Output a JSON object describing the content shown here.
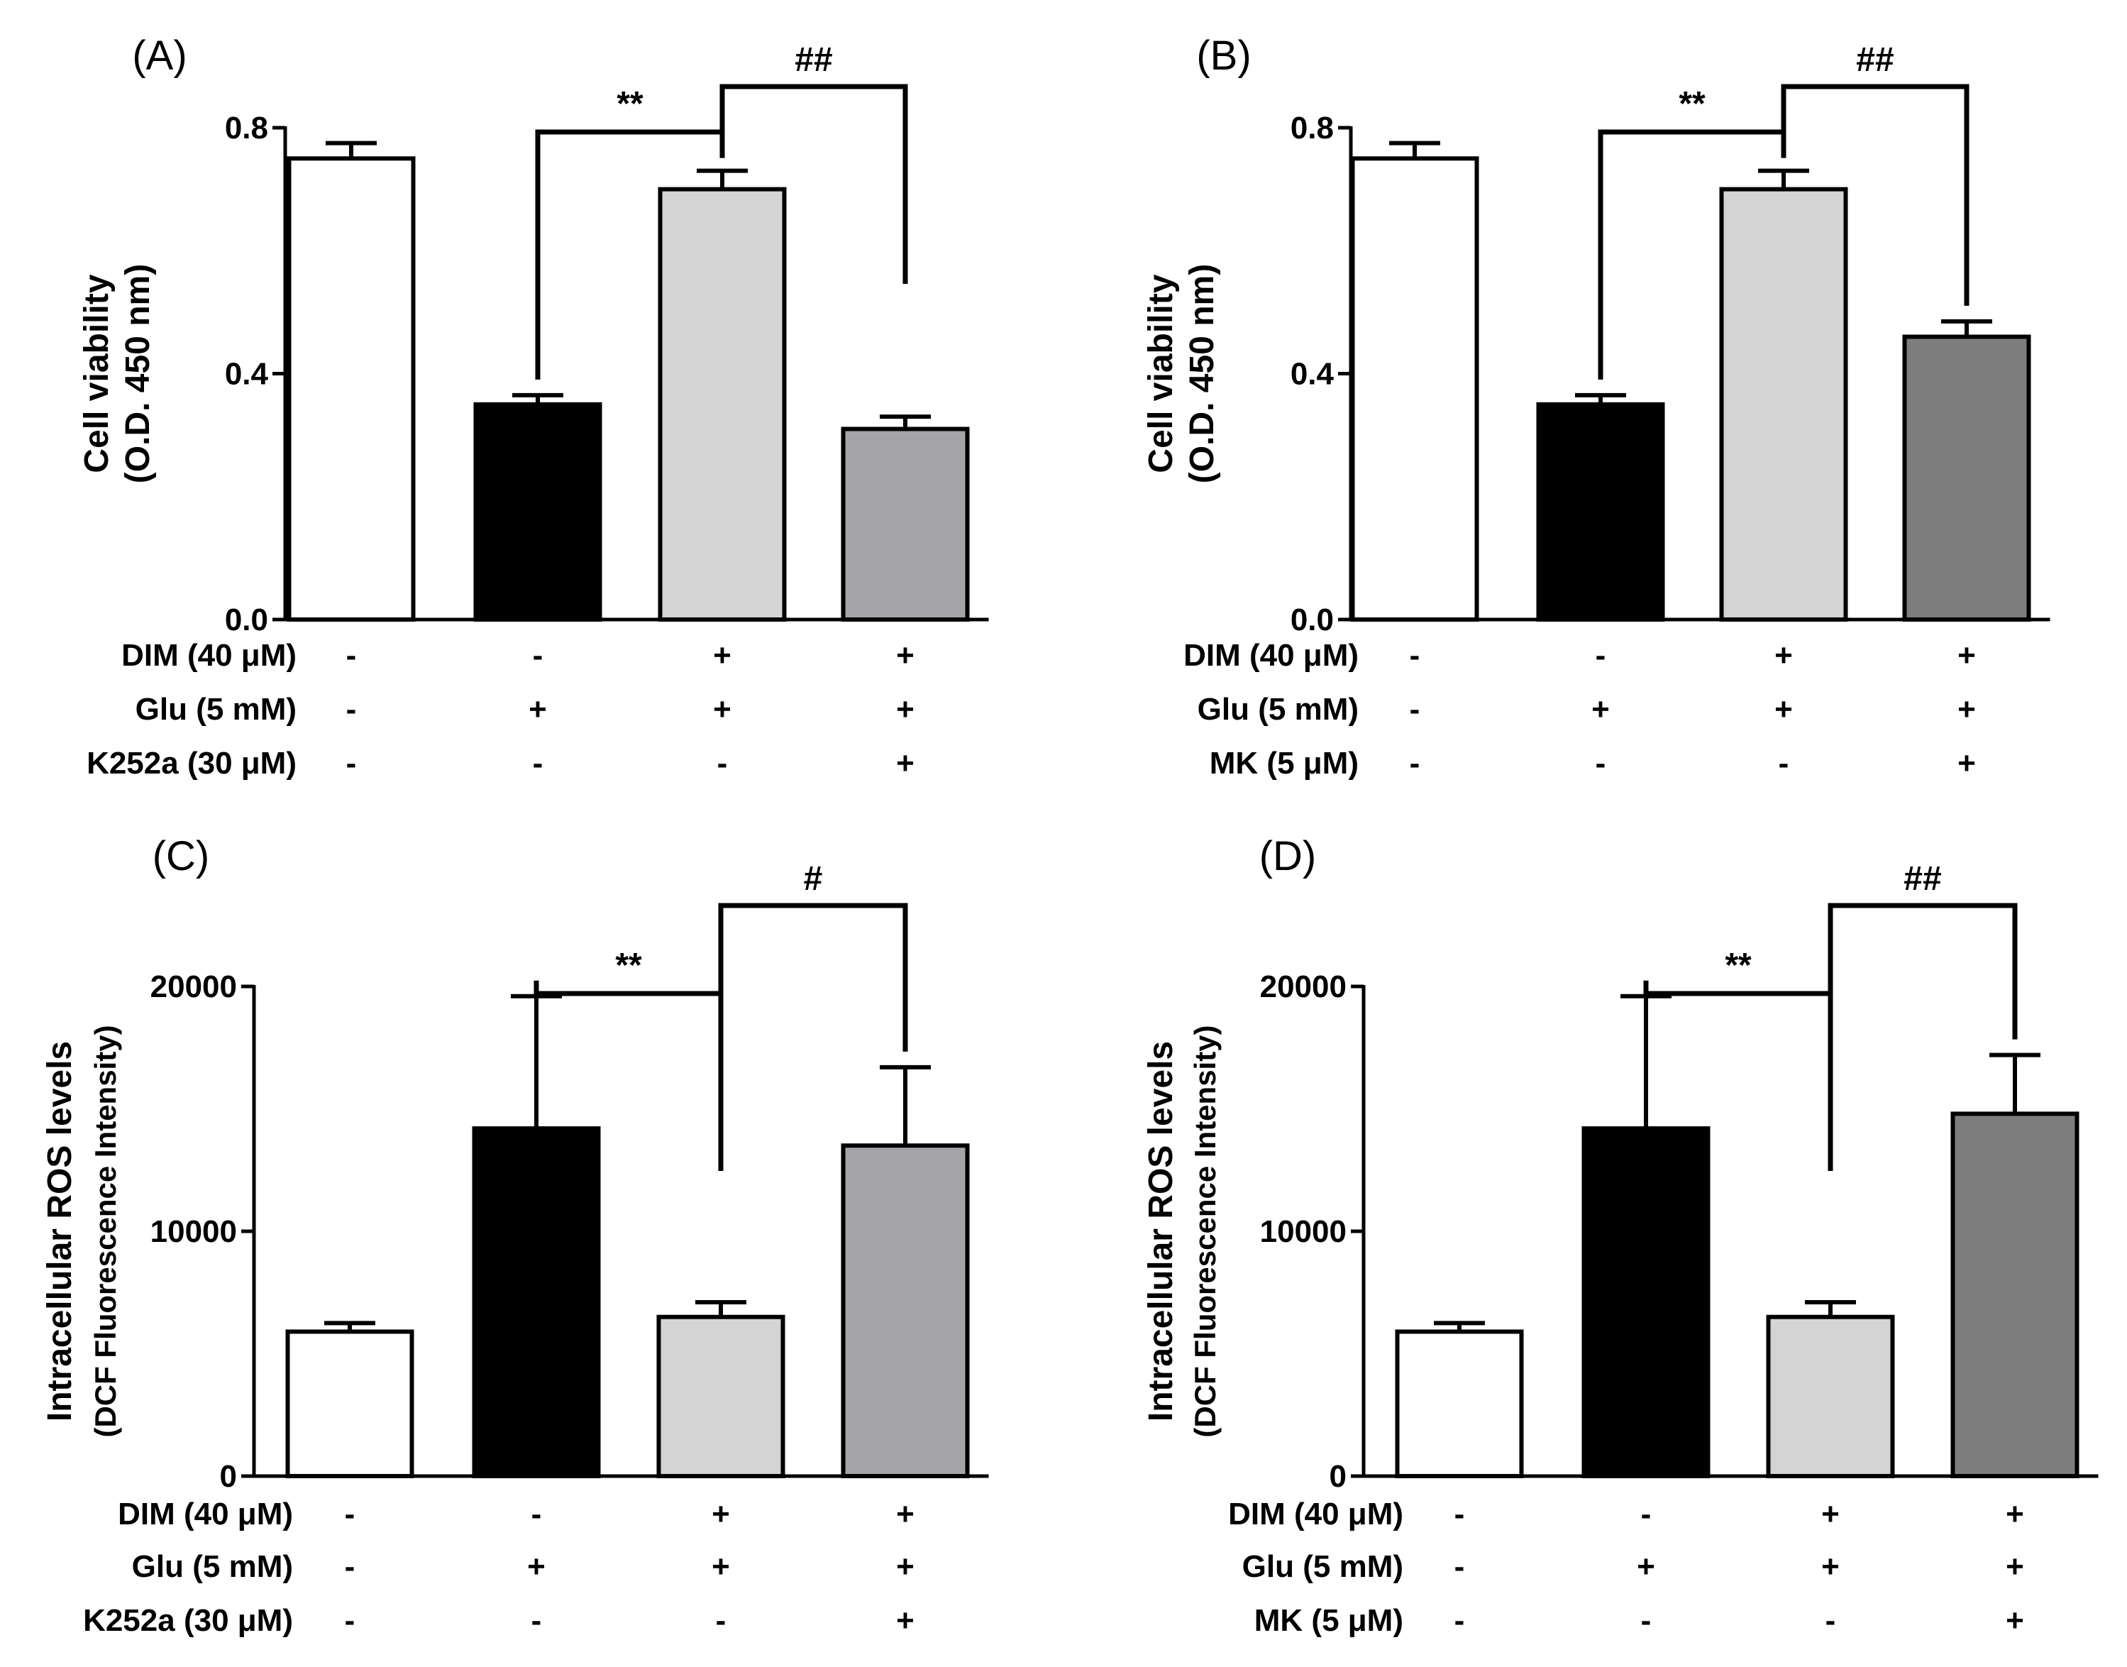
{
  "chart_data": [
    {
      "panel": "(A)",
      "type": "bar",
      "ylabel": [
        "Cell viability",
        "(O.D. 450 nm)"
      ],
      "ylim": [
        0,
        0.8
      ],
      "yticks": [
        0,
        0.4,
        0.8
      ],
      "ytick_labels": [
        "0.0",
        "0.4",
        "0.8"
      ],
      "values": [
        0.75,
        0.35,
        0.7,
        0.31
      ],
      "errors": [
        0.025,
        0.015,
        0.03,
        0.02
      ],
      "colors": [
        "#ffffff",
        "#000000",
        "#d4d4d4",
        "#a5a5a9"
      ],
      "conditions": [
        {
          "label": "DIM (40 μM)",
          "signs": [
            "-",
            "-",
            "+",
            "+"
          ]
        },
        {
          "label": "Glu (5 mM)",
          "signs": [
            "-",
            "+",
            "+",
            "+"
          ]
        },
        {
          "label": "K252a (30 μM)",
          "signs": [
            "-",
            "-",
            "-",
            "+"
          ]
        }
      ],
      "significance": [
        {
          "from": 1,
          "to": 2,
          "label": "**"
        },
        {
          "from": 2,
          "to": 3,
          "label": "##"
        }
      ]
    },
    {
      "panel": "(B)",
      "type": "bar",
      "ylabel": [
        "Cell viability",
        "(O.D. 450 nm)"
      ],
      "ylim": [
        0,
        0.8
      ],
      "yticks": [
        0,
        0.4,
        0.8
      ],
      "ytick_labels": [
        "0.0",
        "0.4",
        "0.8"
      ],
      "values": [
        0.75,
        0.35,
        0.7,
        0.46
      ],
      "errors": [
        0.025,
        0.015,
        0.03,
        0.025
      ],
      "colors": [
        "#ffffff",
        "#000000",
        "#d4d4d4",
        "#7d7d7d"
      ],
      "conditions": [
        {
          "label": "DIM (40 μM)",
          "signs": [
            "-",
            "-",
            "+",
            "+"
          ]
        },
        {
          "label": "Glu (5 mM)",
          "signs": [
            "-",
            "+",
            "+",
            "+"
          ]
        },
        {
          "label": "MK (5 μM)",
          "signs": [
            "-",
            "-",
            "-",
            "+"
          ]
        }
      ],
      "significance": [
        {
          "from": 1,
          "to": 2,
          "label": "**"
        },
        {
          "from": 2,
          "to": 3,
          "label": "##"
        }
      ]
    },
    {
      "panel": "(C)",
      "type": "bar",
      "ylabel": [
        "Intracellular ROS levels",
        "(DCF Fluorescence Intensity)"
      ],
      "ylim": [
        0,
        20000
      ],
      "yticks": [
        0,
        10000,
        20000
      ],
      "ytick_labels": [
        "0",
        "10000",
        "20000"
      ],
      "values": [
        5900,
        14200,
        6500,
        13500
      ],
      "errors": [
        350,
        5400,
        600,
        3200
      ],
      "colors": [
        "#ffffff",
        "#000000",
        "#d4d4d4",
        "#a5a5a9"
      ],
      "conditions": [
        {
          "label": "DIM (40 μM)",
          "signs": [
            "-",
            "-",
            "+",
            "+"
          ]
        },
        {
          "label": "Glu (5 mM)",
          "signs": [
            "-",
            "+",
            "+",
            "+"
          ]
        },
        {
          "label": "K252a (30 μM)",
          "signs": [
            "-",
            "-",
            "-",
            "+"
          ]
        }
      ],
      "significance": [
        {
          "from": 1,
          "to": 2,
          "label": "**"
        },
        {
          "from": 2,
          "to": 3,
          "label": "#"
        }
      ]
    },
    {
      "panel": "(D)",
      "type": "bar",
      "ylabel": [
        "Intracellular ROS levels",
        "(DCF Fluorescence Intensity)"
      ],
      "ylim": [
        0,
        20000
      ],
      "yticks": [
        0,
        10000,
        20000
      ],
      "ytick_labels": [
        "0",
        "10000",
        "20000"
      ],
      "values": [
        5900,
        14200,
        6500,
        14800
      ],
      "errors": [
        350,
        5400,
        600,
        2400
      ],
      "colors": [
        "#ffffff",
        "#000000",
        "#d4d4d4",
        "#7d7d7d"
      ],
      "conditions": [
        {
          "label": "DIM (40 μM)",
          "signs": [
            "-",
            "-",
            "+",
            "+"
          ]
        },
        {
          "label": "Glu (5 mM)",
          "signs": [
            "-",
            "+",
            "+",
            "+"
          ]
        },
        {
          "label": "MK (5 μM)",
          "signs": [
            "-",
            "-",
            "-",
            "+"
          ]
        }
      ],
      "significance": [
        {
          "from": 1,
          "to": 2,
          "label": "**"
        },
        {
          "from": 2,
          "to": 3,
          "label": "##"
        }
      ]
    }
  ]
}
